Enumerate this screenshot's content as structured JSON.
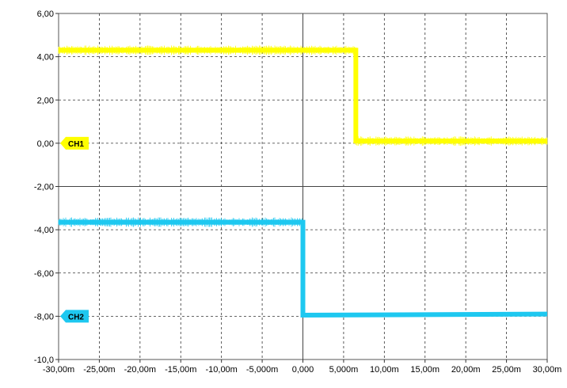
{
  "chart_data": {
    "type": "line",
    "title": "",
    "xlabel": "",
    "ylabel": "",
    "xlim": [
      -0.03,
      0.03
    ],
    "ylim": [
      -10.0,
      6.0
    ],
    "grid": true,
    "legend": "none",
    "x_ticks": [
      {
        "v": -0.03,
        "label": "-30,00m"
      },
      {
        "v": -0.025,
        "label": "-25,00m"
      },
      {
        "v": -0.02,
        "label": "-20,00m"
      },
      {
        "v": -0.015,
        "label": "-15,00m"
      },
      {
        "v": -0.01,
        "label": "-10,00m"
      },
      {
        "v": -0.005,
        "label": "-5,000m"
      },
      {
        "v": 0.0,
        "label": "0,000"
      },
      {
        "v": 0.005,
        "label": "5,000m"
      },
      {
        "v": 0.01,
        "label": "10,00m"
      },
      {
        "v": 0.015,
        "label": "15,00m"
      },
      {
        "v": 0.02,
        "label": "20,00m"
      },
      {
        "v": 0.025,
        "label": "25,00m"
      },
      {
        "v": 0.03,
        "label": "30,00m"
      }
    ],
    "y_ticks": [
      {
        "v": 6.0,
        "label": "6,00"
      },
      {
        "v": 4.0,
        "label": "4,00"
      },
      {
        "v": 2.0,
        "label": "2,00"
      },
      {
        "v": 0.0,
        "label": "0,00"
      },
      {
        "v": -2.0,
        "label": "-2,00"
      },
      {
        "v": -4.0,
        "label": "-4,00"
      },
      {
        "v": -6.0,
        "label": "-6,00"
      },
      {
        "v": -8.0,
        "label": "-8,00"
      },
      {
        "v": -10.0,
        "label": "-10,0"
      }
    ],
    "series": [
      {
        "name": "CH1",
        "color": "#ffff00",
        "zero_level": 0.0,
        "x": [
          -0.03,
          0.0065,
          0.0065,
          0.03
        ],
        "y": [
          4.3,
          4.3,
          0.1,
          0.1
        ]
      },
      {
        "name": "CH2",
        "color": "#1ec8f0",
        "zero_level": -8.0,
        "x": [
          -0.03,
          0.0,
          0.0,
          0.03
        ],
        "y": [
          -3.65,
          -3.65,
          -7.95,
          -7.9
        ]
      }
    ]
  }
}
